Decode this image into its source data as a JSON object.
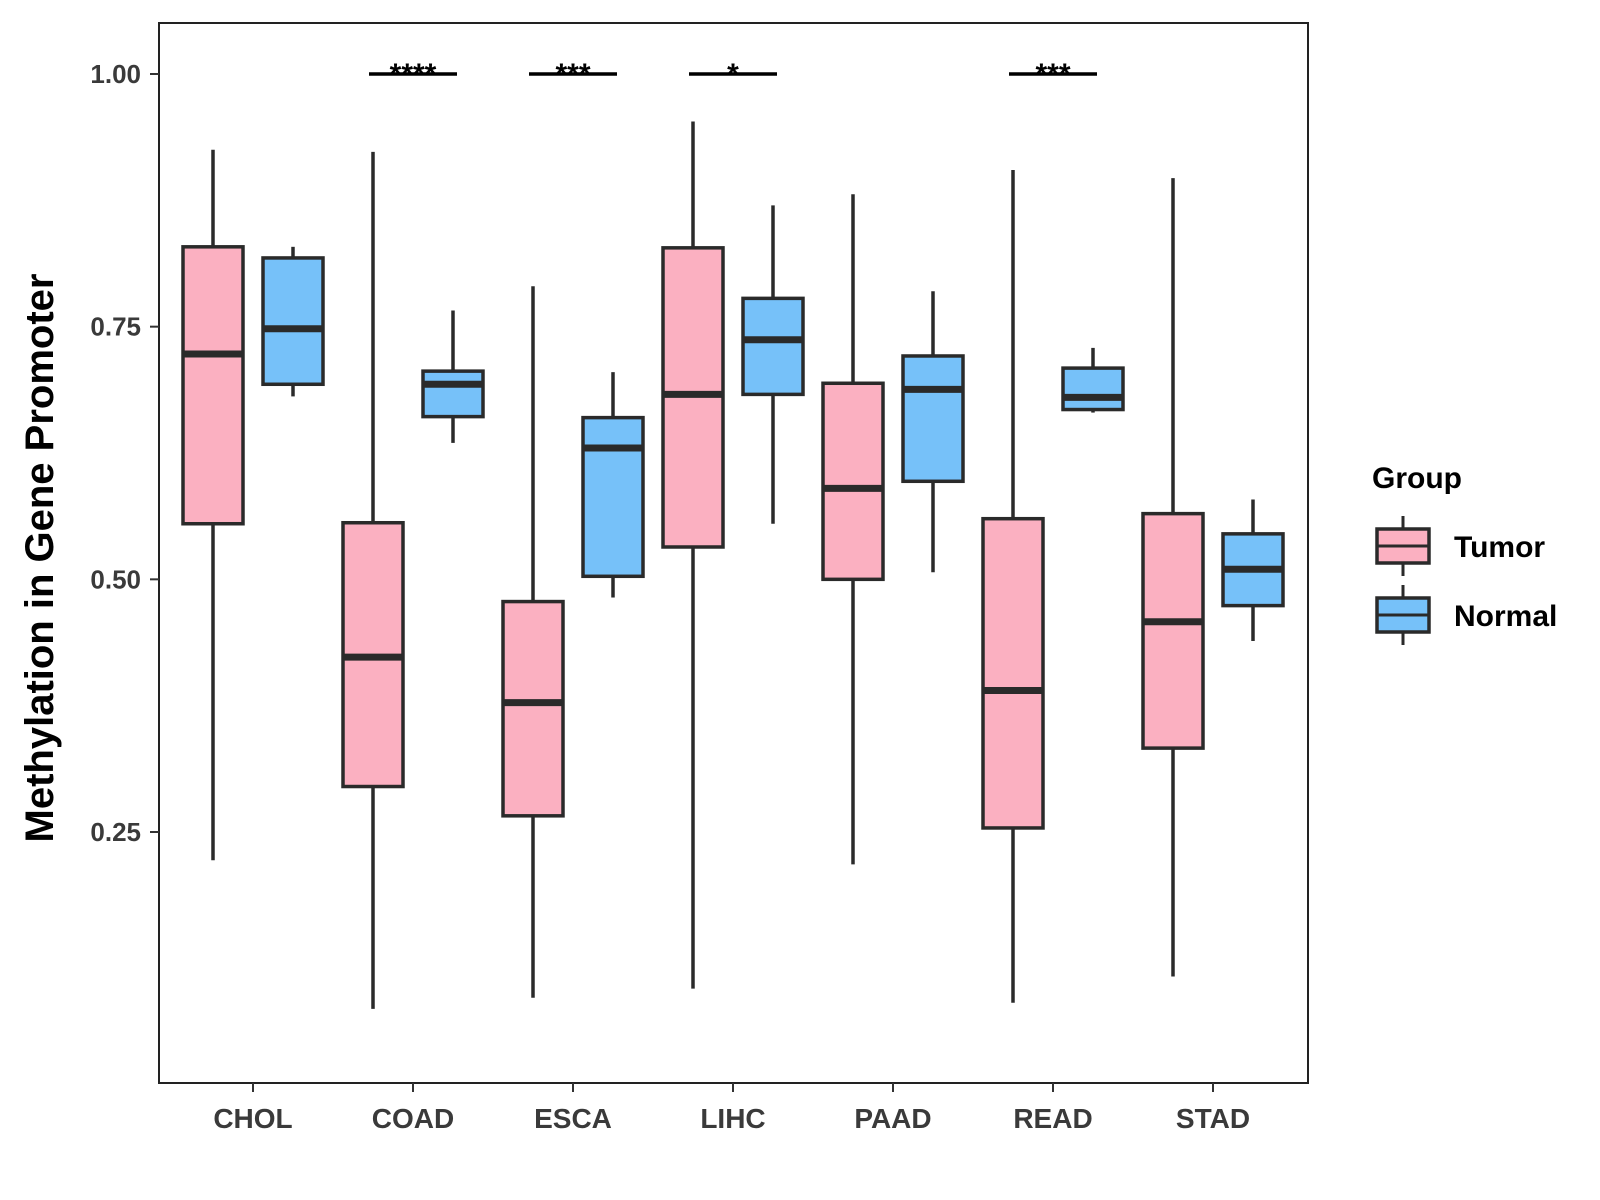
{
  "chart_data": {
    "type": "boxplot",
    "title": "",
    "xlabel": "",
    "ylabel": "Methylation in Gene Promoter",
    "ylim": [
      0.0,
      1.05
    ],
    "yticks": [
      0.25,
      0.5,
      0.75,
      1.0
    ],
    "ytick_labels": [
      "0.25",
      "0.50",
      "0.75",
      "1.00"
    ],
    "grid": false,
    "legend": {
      "title": "Group",
      "position": "right",
      "entries": [
        "Tumor",
        "Normal"
      ]
    },
    "colors": {
      "Tumor": "#fbb0c1",
      "Normal": "#76c1f9",
      "outline": "#2a2a2a"
    },
    "categories": [
      "CHOL",
      "COAD",
      "ESCA",
      "LIHC",
      "PAAD",
      "READ",
      "STAD"
    ],
    "series": [
      {
        "name": "Tumor",
        "boxes": [
          {
            "whisker_low": 0.222,
            "q1": 0.555,
            "median": 0.723,
            "q3": 0.829,
            "whisker_high": 0.925
          },
          {
            "whisker_low": 0.075,
            "q1": 0.295,
            "median": 0.423,
            "q3": 0.556,
            "whisker_high": 0.923
          },
          {
            "whisker_low": 0.086,
            "q1": 0.266,
            "median": 0.378,
            "q3": 0.478,
            "whisker_high": 0.79
          },
          {
            "whisker_low": 0.095,
            "q1": 0.532,
            "median": 0.683,
            "q3": 0.828,
            "whisker_high": 0.953
          },
          {
            "whisker_low": 0.218,
            "q1": 0.5,
            "median": 0.59,
            "q3": 0.694,
            "whisker_high": 0.881
          },
          {
            "whisker_low": 0.081,
            "q1": 0.254,
            "median": 0.39,
            "q3": 0.56,
            "whisker_high": 0.905
          },
          {
            "whisker_low": 0.107,
            "q1": 0.333,
            "median": 0.458,
            "q3": 0.565,
            "whisker_high": 0.897
          }
        ]
      },
      {
        "name": "Normal",
        "boxes": [
          {
            "whisker_low": 0.681,
            "q1": 0.693,
            "median": 0.748,
            "q3": 0.818,
            "whisker_high": 0.829
          },
          {
            "whisker_low": 0.635,
            "q1": 0.661,
            "median": 0.693,
            "q3": 0.706,
            "whisker_high": 0.766
          },
          {
            "whisker_low": 0.482,
            "q1": 0.503,
            "median": 0.63,
            "q3": 0.66,
            "whisker_high": 0.705
          },
          {
            "whisker_low": 0.555,
            "q1": 0.683,
            "median": 0.737,
            "q3": 0.778,
            "whisker_high": 0.87
          },
          {
            "whisker_low": 0.507,
            "q1": 0.597,
            "median": 0.688,
            "q3": 0.721,
            "whisker_high": 0.785
          },
          {
            "whisker_low": 0.665,
            "q1": 0.668,
            "median": 0.68,
            "q3": 0.709,
            "whisker_high": 0.729
          },
          {
            "whisker_low": 0.439,
            "q1": 0.474,
            "median": 0.51,
            "q3": 0.545,
            "whisker_high": 0.579
          }
        ]
      }
    ],
    "significance": [
      {
        "category": "COAD",
        "label": "****",
        "y": 1.0
      },
      {
        "category": "ESCA",
        "label": "***",
        "y": 1.0
      },
      {
        "category": "LIHC",
        "label": "*",
        "y": 1.0
      },
      {
        "category": "READ",
        "label": "***",
        "y": 1.0
      }
    ]
  }
}
